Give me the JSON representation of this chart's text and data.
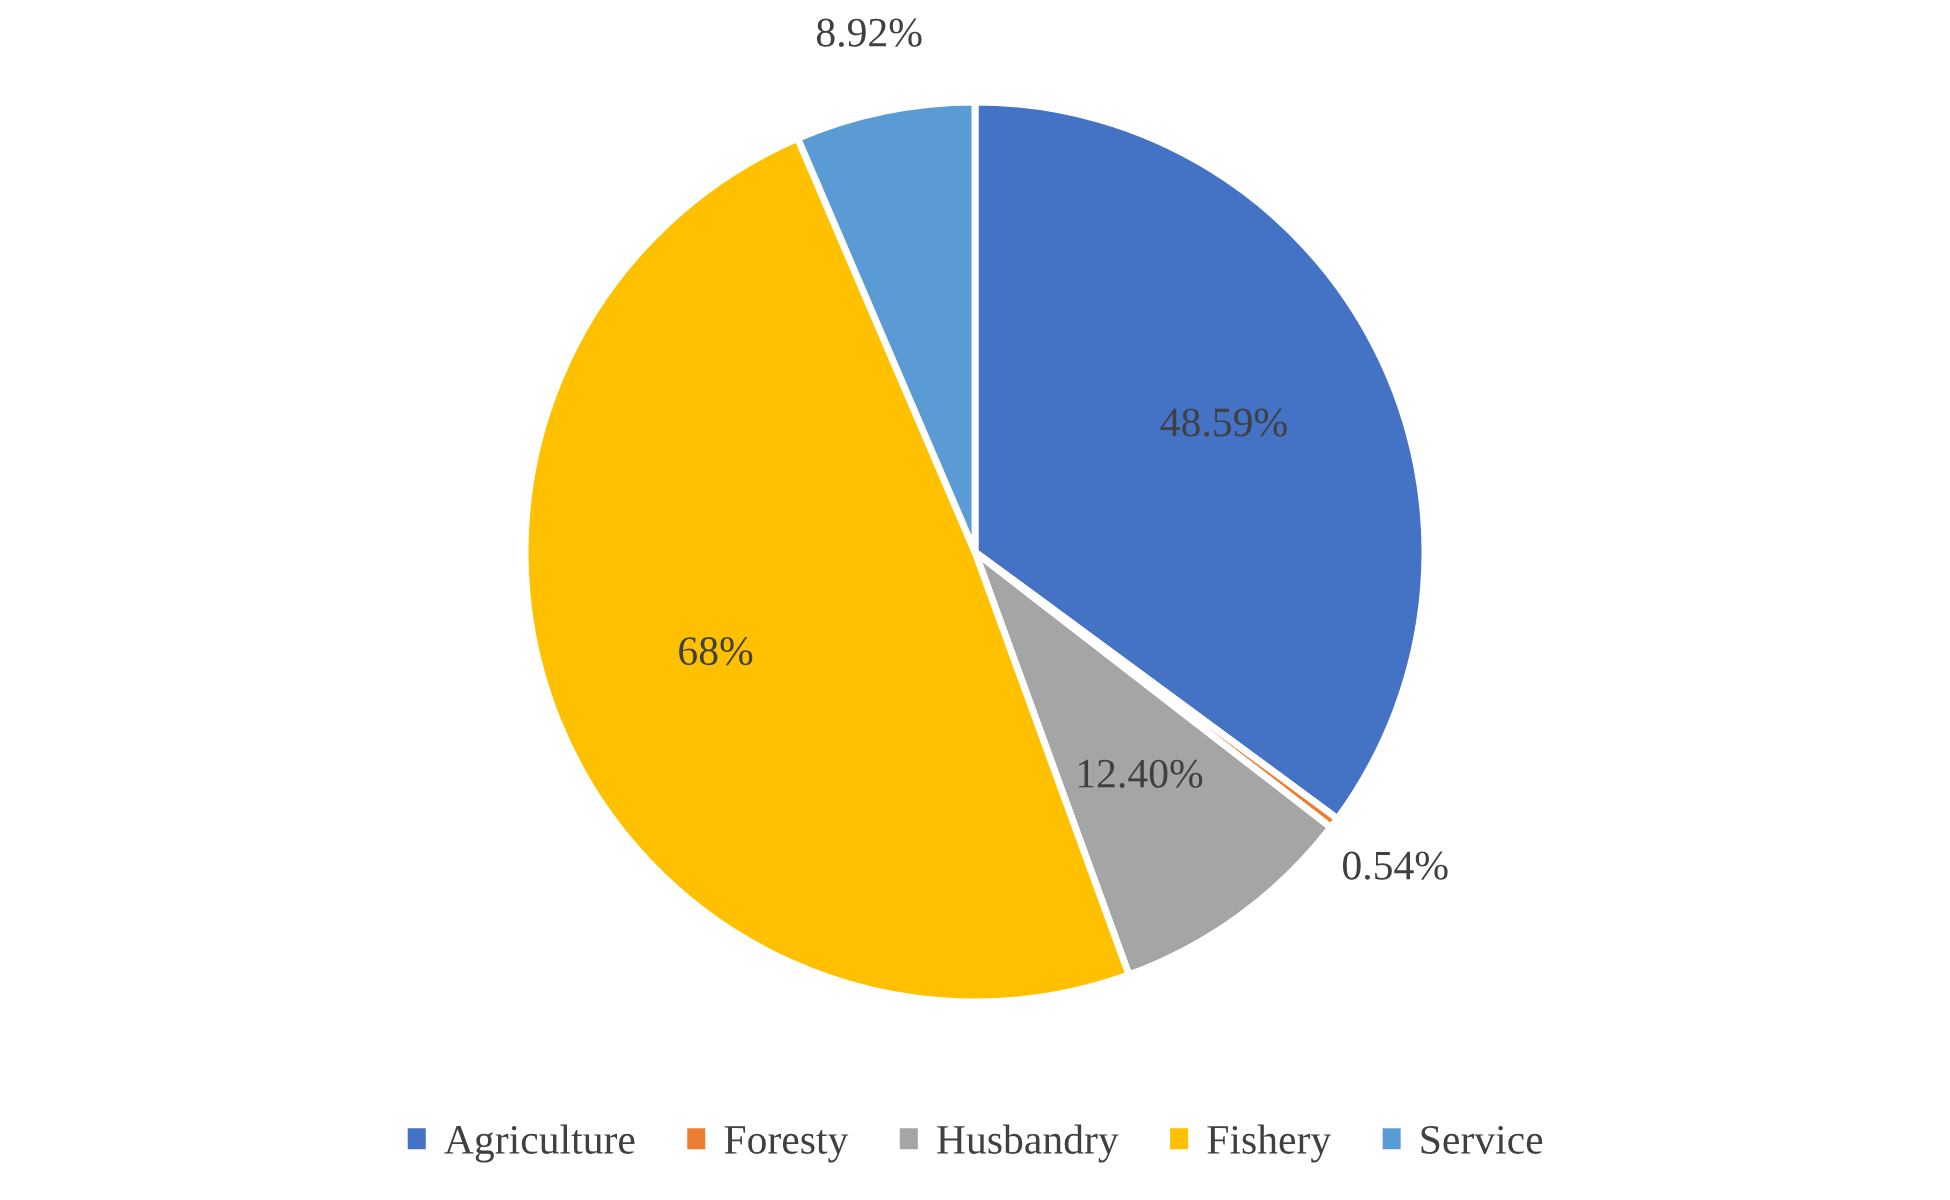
{
  "chart_data": {
    "type": "pie",
    "categories": [
      "Agriculture",
      "Foresty",
      "Husbandry",
      "Fishery",
      "Service"
    ],
    "values": [
      48.59,
      0.54,
      12.4,
      68,
      8.92
    ],
    "value_labels": [
      "48.59%",
      "0.54%",
      "12.40%",
      "68%",
      "8.92%"
    ],
    "colors": [
      "#4472c4",
      "#ed7d31",
      "#a5a5a5",
      "#ffc000",
      "#5b9bd5"
    ],
    "legend": "bottom"
  }
}
